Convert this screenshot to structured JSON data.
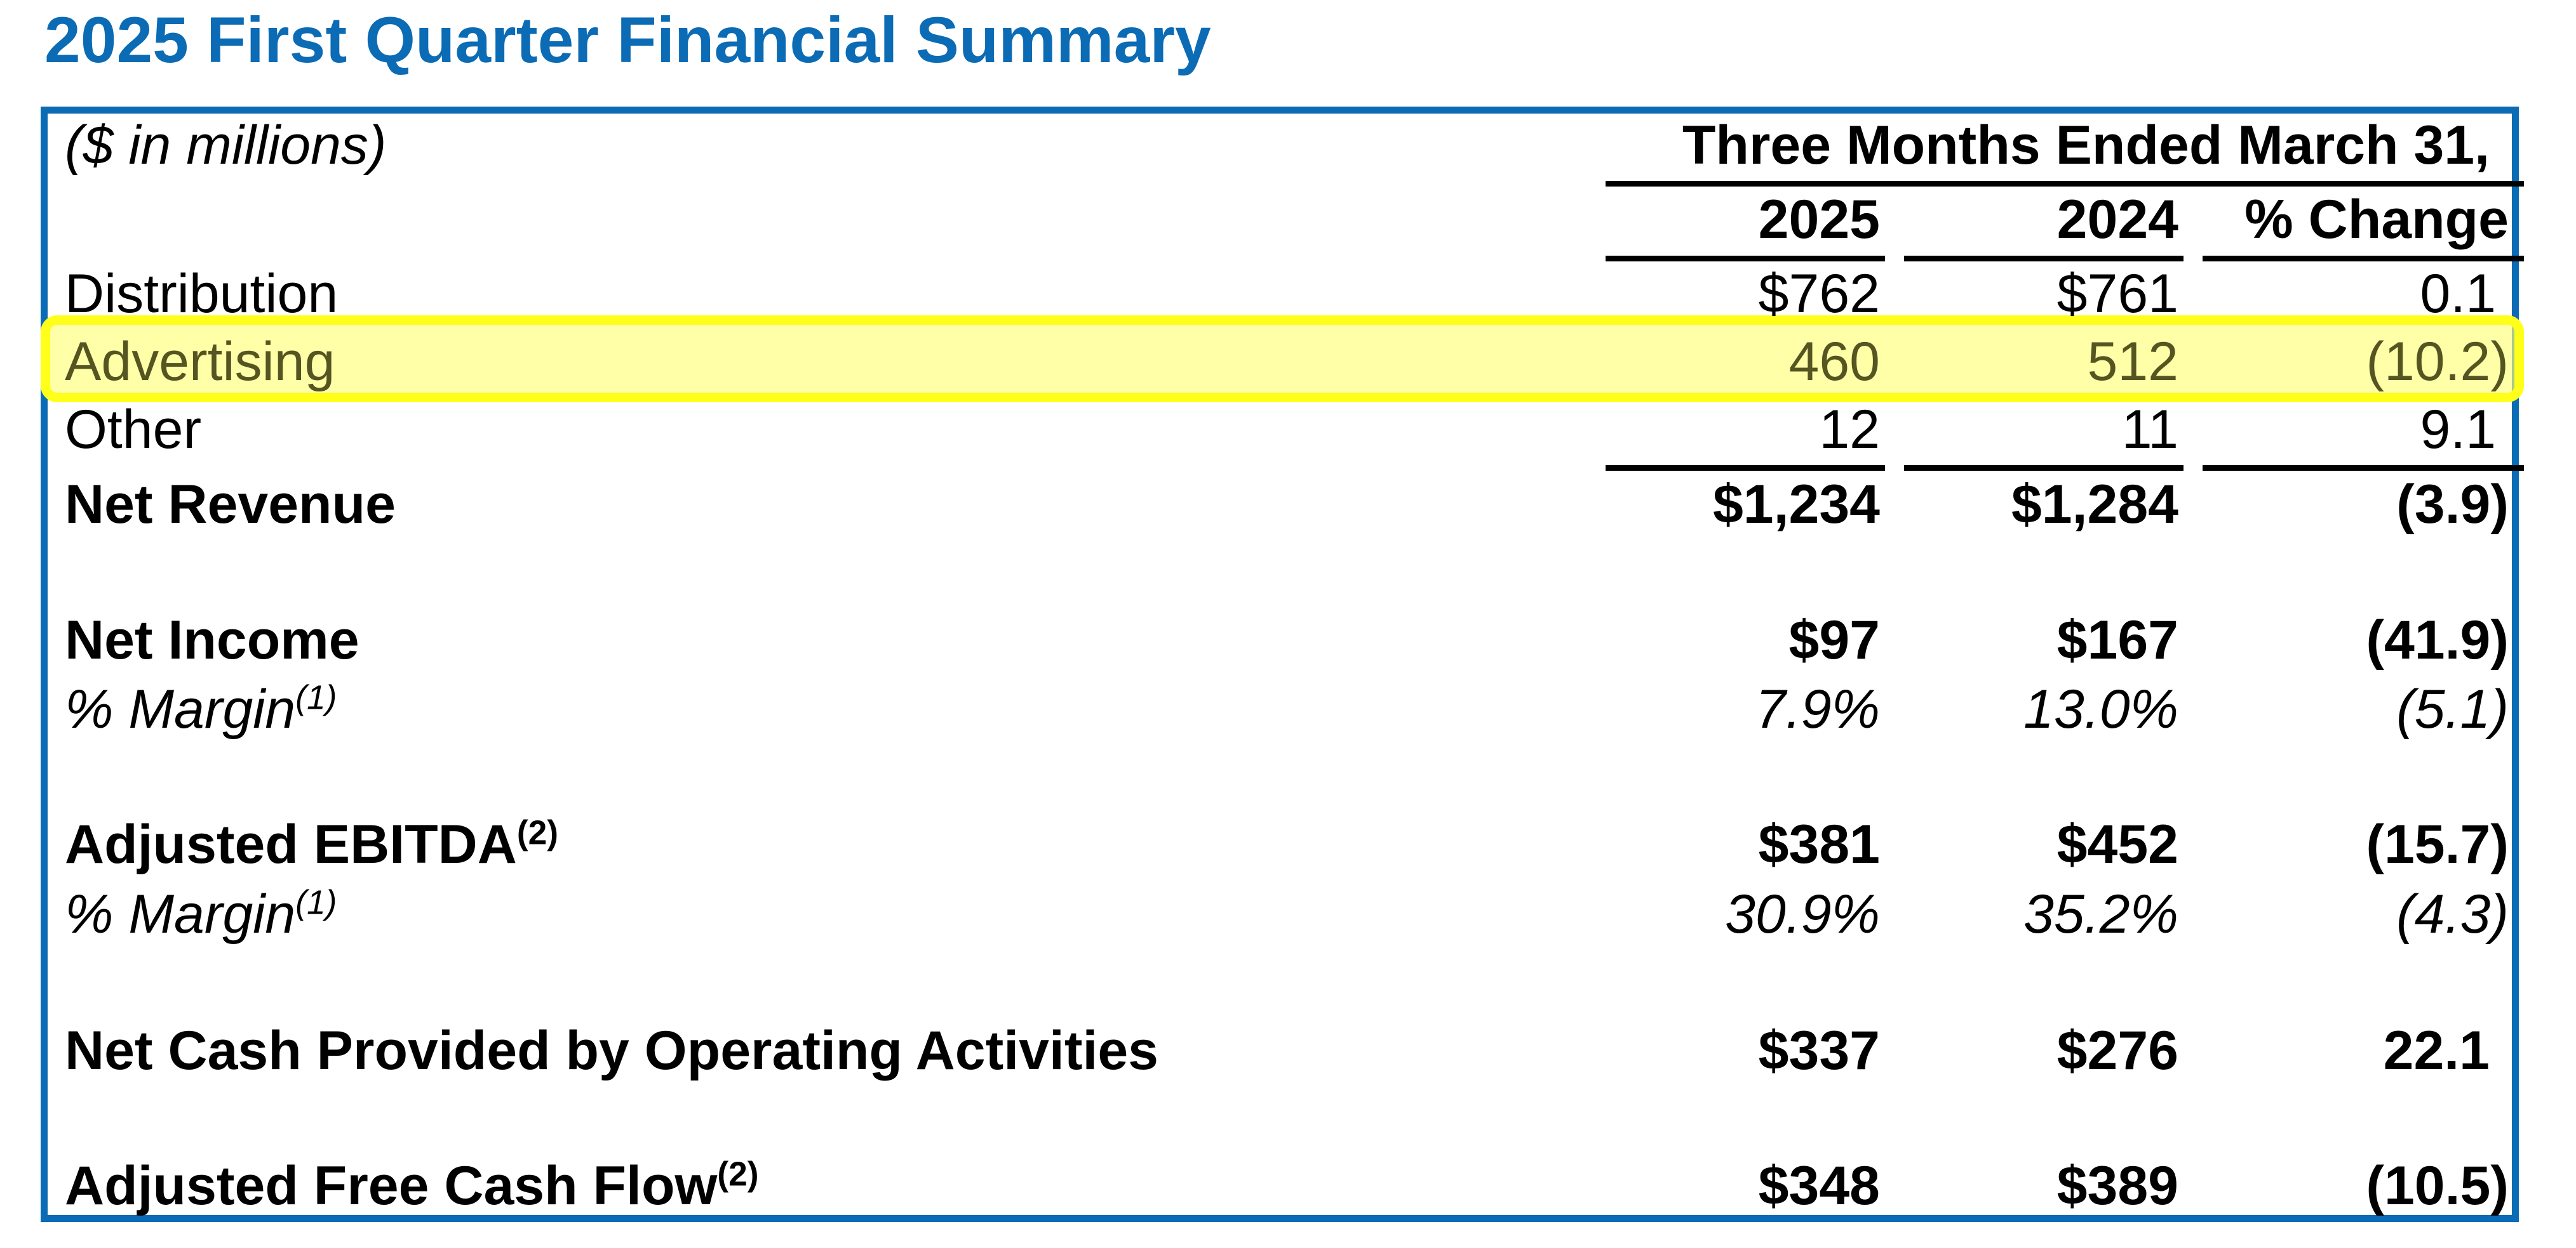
{
  "title": "2025 First Quarter Financial Summary",
  "table": {
    "units_note": "($ in millions)",
    "period_header": "Three Months Ended March 31,",
    "columns": [
      "2025",
      "2024",
      "% Change"
    ],
    "rows": [
      {
        "label": "Distribution",
        "values": [
          "$762",
          "$761",
          "0.1"
        ]
      },
      {
        "label": "Advertising",
        "values": [
          "460",
          "512",
          "(10.2)"
        ]
      },
      {
        "label": "Other",
        "values": [
          "12",
          "11",
          "9.1"
        ]
      },
      {
        "label": "Net Revenue",
        "values": [
          "$1,234",
          "$1,284",
          "(3.9)"
        ]
      },
      {
        "label": "Net Income",
        "values": [
          "$97",
          "$167",
          "(41.9)"
        ]
      },
      {
        "label": "% Margin",
        "sup": "(1)",
        "values": [
          "7.9%",
          "13.0%",
          "(5.1)"
        ]
      },
      {
        "label": "Adjusted EBITDA",
        "sup": "(2)",
        "values": [
          "$381",
          "$452",
          "(15.7)"
        ]
      },
      {
        "label": "% Margin",
        "sup": "(1)",
        "values": [
          "30.9%",
          "35.2%",
          "(4.3)"
        ]
      },
      {
        "label": "Net Cash Provided by Operating Activities",
        "values": [
          "$337",
          "$276",
          "22.1"
        ]
      },
      {
        "label": "Adjusted Free Cash Flow",
        "sup": "(2)",
        "values": [
          "$348",
          "$389",
          "(10.5)"
        ]
      }
    ]
  },
  "highlight": {
    "row": "Advertising",
    "color": "#ffff1a"
  },
  "colors": {
    "title": "#0b6bb5",
    "border": "#0b6bb5"
  }
}
